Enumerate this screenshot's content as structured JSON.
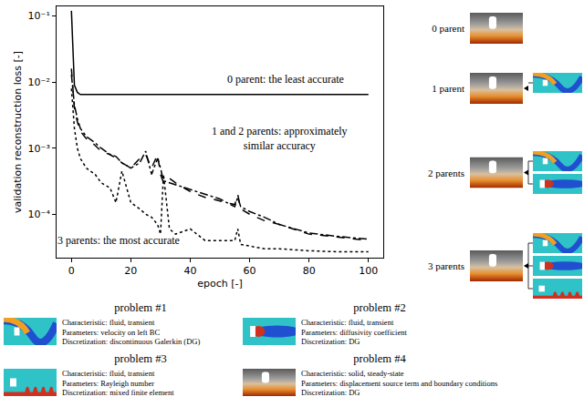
{
  "chart_data": {
    "type": "line",
    "log": "y",
    "grid": false,
    "x_label": "epoch [-]",
    "y_label": "validation reconstruction loss [-]",
    "xlim": [
      -5,
      105
    ],
    "xticks": [
      0,
      20,
      40,
      60,
      80,
      100
    ],
    "ylim": [
      2.2e-05,
      0.14
    ],
    "yticks": [
      {
        "value": 0.0001,
        "label": "10⁻⁴"
      },
      {
        "value": 0.001,
        "label": "10⁻³"
      },
      {
        "value": 0.01,
        "label": "10⁻²"
      },
      {
        "value": 0.1,
        "label": "10⁻¹"
      }
    ],
    "x": [
      0,
      1,
      2,
      3,
      5,
      8,
      10,
      13,
      15,
      17,
      20,
      23,
      25,
      27,
      29,
      30,
      31,
      33,
      35,
      40,
      45,
      50,
      55,
      56,
      57,
      60,
      65,
      70,
      80,
      90,
      100
    ],
    "series": [
      {
        "color": "#000000",
        "line_style": "solid",
        "values": [
          0.12,
          0.009,
          0.007,
          0.0065,
          0.0065,
          0.0065,
          0.0065,
          0.0065,
          0.0065,
          0.0065,
          0.0065,
          0.0065,
          0.0065,
          0.0065,
          0.0065,
          0.0065,
          0.0065,
          0.0065,
          0.0065,
          0.0065,
          0.0065,
          0.0065,
          0.0065,
          0.0065,
          0.0065,
          0.0065,
          0.0065,
          0.0065,
          0.0065,
          0.0065,
          0.0065
        ]
      },
      {
        "color": "#000000",
        "line_style": "dashed",
        "values": [
          0.016,
          0.004,
          0.0025,
          0.0018,
          0.0014,
          0.0011,
          0.0009,
          0.0008,
          0.0007,
          0.0006,
          0.0005,
          0.0007,
          0.0008,
          0.0005,
          0.0008,
          0.0004,
          0.0003,
          0.00035,
          0.0003,
          0.00022,
          0.00018,
          0.00016,
          0.00014,
          0.0002,
          0.00012,
          0.0001,
          8e-05,
          7e-05,
          5e-05,
          4.5e-05,
          4e-05
        ]
      },
      {
        "color": "#000000",
        "line_style": "dashdot",
        "values": [
          0.013,
          0.0045,
          0.0028,
          0.002,
          0.0015,
          0.0012,
          0.001,
          0.0008,
          0.00075,
          0.0006,
          0.0005,
          0.0006,
          0.0009,
          0.0004,
          0.0007,
          0.0005,
          0.00032,
          0.0003,
          0.00028,
          0.00024,
          0.0002,
          0.00017,
          0.00013,
          0.00018,
          0.00013,
          0.00011,
          9e-05,
          7e-05,
          5.2e-05,
          4.6e-05,
          4.2e-05
        ]
      },
      {
        "color": "#000000",
        "line_style": "dotted",
        "values": [
          0.008,
          0.002,
          0.001,
          0.0007,
          0.0005,
          0.0004,
          0.0003,
          0.00025,
          0.00015,
          0.00045,
          0.00015,
          0.00012,
          0.0001,
          9e-05,
          7e-05,
          5e-05,
          0.0004,
          6e-05,
          5e-05,
          6e-05,
          4e-05,
          4e-05,
          4e-05,
          6e-05,
          3.5e-05,
          3.3e-05,
          3e-05,
          3e-05,
          2.8e-05,
          2.7e-05,
          2.7e-05
        ]
      }
    ],
    "annotations": [
      {
        "lines": [
          "0 parent: the least accurate"
        ],
        "x": 72,
        "y": 0.011
      },
      {
        "lines": [
          "1 and 2 parents: approximately",
          "similar accuracy"
        ],
        "x": 70,
        "y": 0.0014
      },
      {
        "lines": [
          "3 parents: the most accurate"
        ],
        "x": 16,
        "y": 4e-05
      }
    ]
  },
  "diagram": {
    "levels": [
      {
        "label": "0 parent",
        "target": 4,
        "parents": []
      },
      {
        "label": "1 parent",
        "target": 4,
        "parents": [
          1
        ]
      },
      {
        "label": "2 parents",
        "target": 4,
        "parents": [
          1,
          2
        ]
      },
      {
        "label": "3 parents",
        "target": 4,
        "parents": [
          1,
          2,
          3
        ]
      }
    ],
    "problems": [
      {
        "number": 1,
        "title": "problem #1",
        "lines": [
          "Characteristic: fluid, transient",
          "Parameters: velocity on left BC",
          "Discretization: discontinuous Galerkin (DG)"
        ]
      },
      {
        "number": 2,
        "title": "problem #2",
        "lines": [
          "Characteristic: fluid, transient",
          "Parameters: diffusivity coefficient",
          "Discretization: DG"
        ]
      },
      {
        "number": 3,
        "title": "problem #3",
        "lines": [
          "Characteristic: fluid, transient",
          "Parameters: Rayleigh number",
          "Discretization: mixed finite element"
        ]
      },
      {
        "number": 4,
        "title": "problem #4",
        "lines": [
          "Characteristic: solid, steady-state",
          "Parameters: displacement source term and boundary conditions",
          "Discretization: DG"
        ]
      }
    ]
  }
}
